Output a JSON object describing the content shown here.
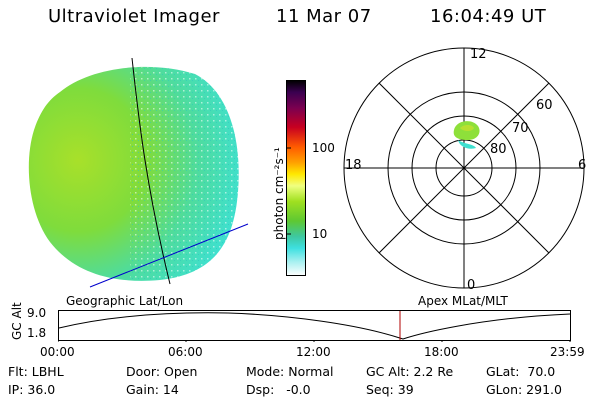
{
  "header": {
    "title": "Ultraviolet Imager",
    "date": "11 Mar 07",
    "time": "16:04:49 UT"
  },
  "colorbar": {
    "unit_label": "photon cm⁻²s⁻¹",
    "ticks": [
      "100",
      "10"
    ]
  },
  "polar_plot": {
    "clock_labels": [
      "12",
      "18",
      "6",
      "0"
    ],
    "lat_labels": [
      "60",
      "70",
      "80"
    ]
  },
  "panels": {
    "left_label": "Geographic Lat/Lon",
    "right_label": "Apex MLat/MLT"
  },
  "altitude_plot": {
    "ylabel": "GC Alt",
    "ytick_top": "9.0",
    "ytick_bottom": "1.8",
    "xticks": [
      "00:00",
      "06:00",
      "12:00",
      "18:00",
      "23:59"
    ]
  },
  "info": {
    "filter": "Flt: LBHL",
    "door": "Door: Open",
    "mode": "Mode: Normal",
    "gc_alt": "GC Alt: 2.2 Re",
    "glat": "GLat:  70.0",
    "ip": "IP: 36.0",
    "gain": "Gain: 14",
    "dsp": "Dsp:   -0.0",
    "seq": "Seq: 39",
    "glon": "GLon: 291.0"
  },
  "colors": {
    "disk_green": "#8ee03a",
    "disk_cyan": "#3ee0d0",
    "marker_red": "#b00000",
    "line_blue": "#0000cc"
  }
}
